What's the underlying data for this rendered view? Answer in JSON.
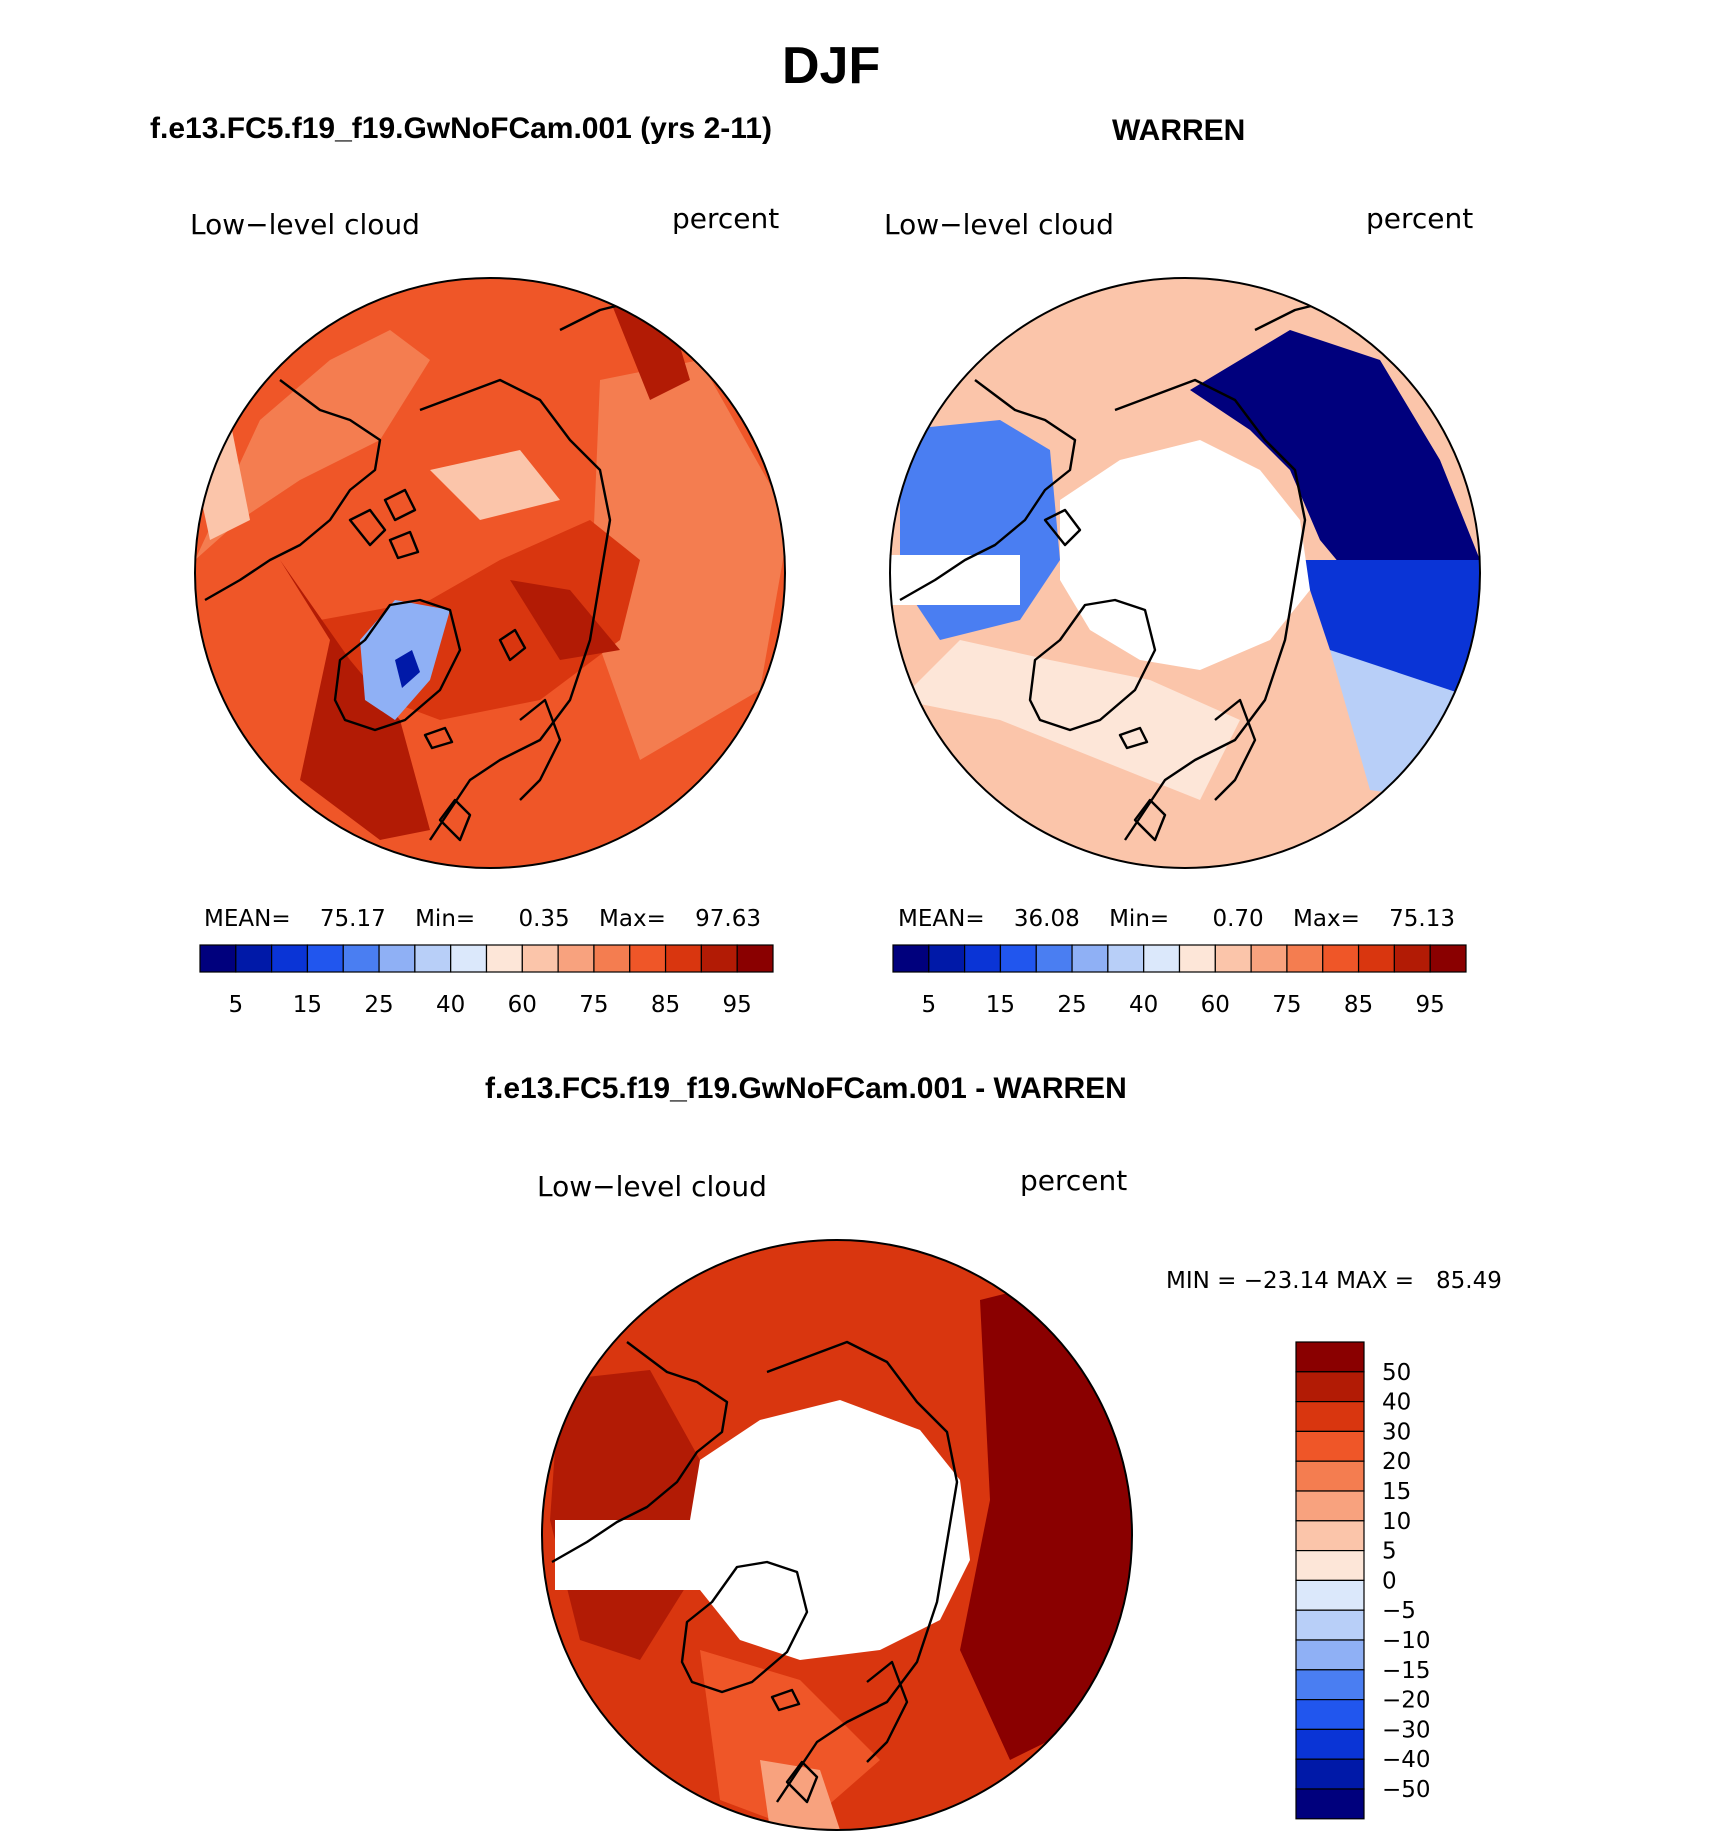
{
  "figure": {
    "title": "DJF",
    "panel_left_title": "f.e13.FC5.f19_f19.GwNoFCam.001 (yrs 2-11)",
    "panel_right_title": "WARREN",
    "panel_diff_title": "f.e13.FC5.f19_f19.GwNoFCam.001 - WARREN"
  },
  "panels": [
    {
      "variable": "Low−level cloud",
      "units": "percent",
      "stats": {
        "mean_label": "MEAN=",
        "mean": "75.17",
        "min_label": "Min=",
        "min": "0.35",
        "max_label": "Max=",
        "max": "97.63"
      }
    },
    {
      "variable": "Low−level cloud",
      "units": "percent",
      "stats": {
        "mean_label": "MEAN=",
        "mean": "36.08",
        "min_label": "Min=",
        "min": "0.70",
        "max_label": "Max=",
        "max": "75.13"
      }
    },
    {
      "variable": "Low−level cloud",
      "units": "percent",
      "stats_text": "MIN = −23.14 MAX =   85.49"
    }
  ],
  "colorbar_abs": {
    "colors": [
      "#00007d",
      "#0019a8",
      "#0a34d6",
      "#2156ee",
      "#4a7ef2",
      "#8fb0f5",
      "#b8cff8",
      "#dbe8fb",
      "#fde6d8",
      "#fbc5aa",
      "#f8a27e",
      "#f47d50",
      "#ef5628",
      "#d9360f",
      "#b21b05",
      "#8a0000"
    ],
    "labels": [
      "5",
      "15",
      "25",
      "40",
      "60",
      "75",
      "85",
      "95"
    ]
  },
  "colorbar_diff": {
    "colors": [
      "#00007d",
      "#0019a8",
      "#0a34d6",
      "#2156ee",
      "#4a7ef2",
      "#8fb0f5",
      "#b8cff8",
      "#dbe8fb",
      "#fde6d8",
      "#fbc5aa",
      "#f8a27e",
      "#f47d50",
      "#ef5628",
      "#d9360f",
      "#b21b05",
      "#8a0000"
    ],
    "labels": [
      "50",
      "40",
      "30",
      "20",
      "15",
      "10",
      "5",
      "0",
      "−5",
      "−10",
      "−15",
      "−20",
      "−30",
      "−40",
      "−50"
    ]
  },
  "maps": {
    "model": {
      "background": "#ef5628",
      "shades": [
        {
          "color": "#f47d50"
        },
        {
          "color": "#d9360f"
        },
        {
          "color": "#b21b05"
        },
        {
          "color": "#fbc5aa"
        },
        {
          "color": "#8fb0f5"
        },
        {
          "color": "#0019a8"
        }
      ]
    },
    "obs": {
      "background": "#fbc5aa",
      "shades": [
        {
          "color": "#fde6d8"
        },
        {
          "color": "#00007d"
        },
        {
          "color": "#0a34d6"
        },
        {
          "color": "#4a7ef2"
        },
        {
          "color": "#b8cff8"
        },
        {
          "color": "#ffffff"
        }
      ]
    },
    "diff": {
      "background": "#d9360f",
      "shades": [
        {
          "color": "#8a0000"
        },
        {
          "color": "#b21b05"
        },
        {
          "color": "#ef5628"
        },
        {
          "color": "#f8a27e"
        },
        {
          "color": "#ffffff"
        }
      ]
    }
  }
}
